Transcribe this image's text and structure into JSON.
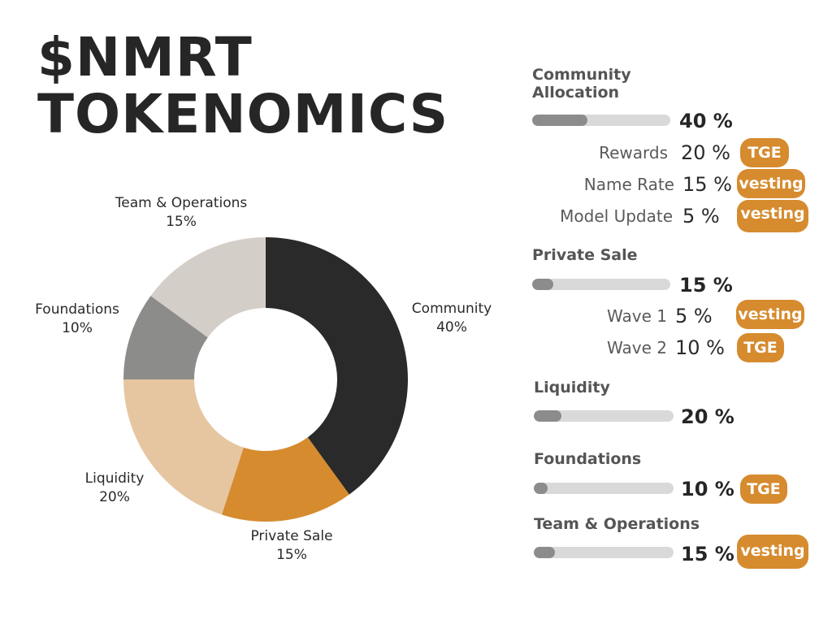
{
  "title": {
    "line1": "$NMRT",
    "line2": "TOKENOMICS"
  },
  "colors": {
    "community": "#2a2a2a",
    "private_sale": "#d68b2e",
    "liquidity": "#e6c6a1",
    "foundations": "#8c8c8a",
    "team_operations": "#d4cec8",
    "badge": "#d68b2e",
    "bar_fill": "#8c8c8c",
    "bar_track": "#d9d9d9"
  },
  "chart_data": {
    "type": "pie",
    "donut": true,
    "slices": [
      {
        "name": "Community",
        "pct_label": "40%",
        "value": 40
      },
      {
        "name": "Private Sale",
        "pct_label": "15%",
        "value": 15
      },
      {
        "name": "Liquidity",
        "pct_label": "20%",
        "value": 20
      },
      {
        "name": "Foundations",
        "pct_label": "10%",
        "value": 10
      },
      {
        "name": "Team & Operations",
        "pct_label": "15%",
        "value": 15
      }
    ]
  },
  "breakdown": [
    {
      "title": "Community\nAllocation",
      "pct": "40 %",
      "value": 40,
      "items": [
        {
          "label": "Rewards",
          "pct": "20 %",
          "badge": "TGE"
        },
        {
          "label": "Name Rate",
          "pct": "15 %",
          "badge": "vesting"
        },
        {
          "label": "Model Update",
          "pct": "5 %",
          "badge": "vesting"
        }
      ]
    },
    {
      "title": "Private Sale",
      "pct": "15 %",
      "value": 15,
      "items": [
        {
          "label": "Wave 1",
          "pct": "5 %",
          "badge": "vesting"
        },
        {
          "label": "Wave 2",
          "pct": "10 %",
          "badge": "TGE"
        }
      ]
    },
    {
      "title": "Liquidity",
      "pct": "20 %",
      "value": 20,
      "items": []
    },
    {
      "title": "Foundations",
      "pct": "10 %",
      "value": 10,
      "badge": "TGE",
      "items": []
    },
    {
      "title": "Team & Operations",
      "pct": "15 %",
      "value": 15,
      "badge": "vesting",
      "items": []
    }
  ]
}
